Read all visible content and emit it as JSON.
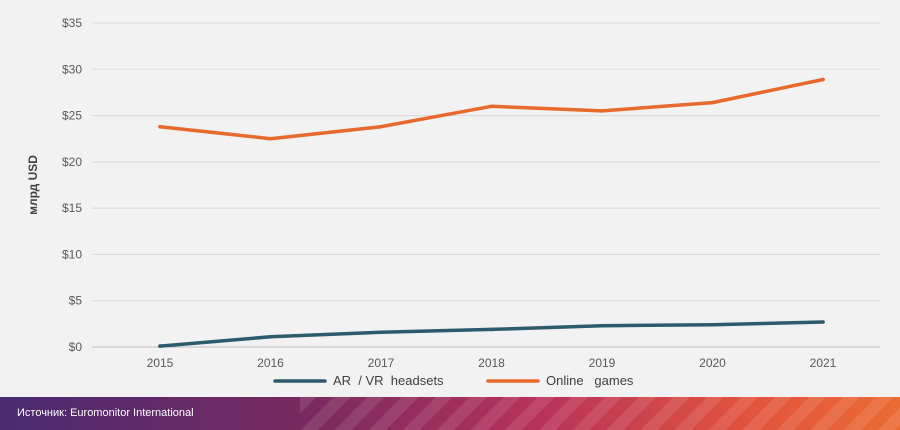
{
  "chart_data": {
    "type": "line",
    "xlabel": "",
    "ylabel": "млрд USD",
    "x": [
      "2015",
      "2016",
      "2017",
      "2018",
      "2019",
      "2020",
      "2021"
    ],
    "ylim": [
      0,
      35
    ],
    "yticks": [
      0,
      5,
      10,
      15,
      20,
      25,
      30,
      35
    ],
    "ytick_labels": [
      "$0",
      "$5",
      "$10",
      "$15",
      "$20",
      "$25",
      "$30",
      "$35"
    ],
    "grid": true,
    "legend_position": "bottom",
    "series": [
      {
        "name": "AR  / VR  headsets",
        "color": "#2e5a6e",
        "values": [
          0.1,
          1.1,
          1.6,
          1.9,
          2.3,
          2.4,
          2.7
        ]
      },
      {
        "name": "Online   games",
        "color": "#e8692c",
        "values": [
          23.8,
          22.5,
          23.8,
          26.0,
          25.5,
          26.4,
          28.9
        ]
      }
    ]
  },
  "footer": {
    "source": "Источник: Euromonitor International"
  }
}
